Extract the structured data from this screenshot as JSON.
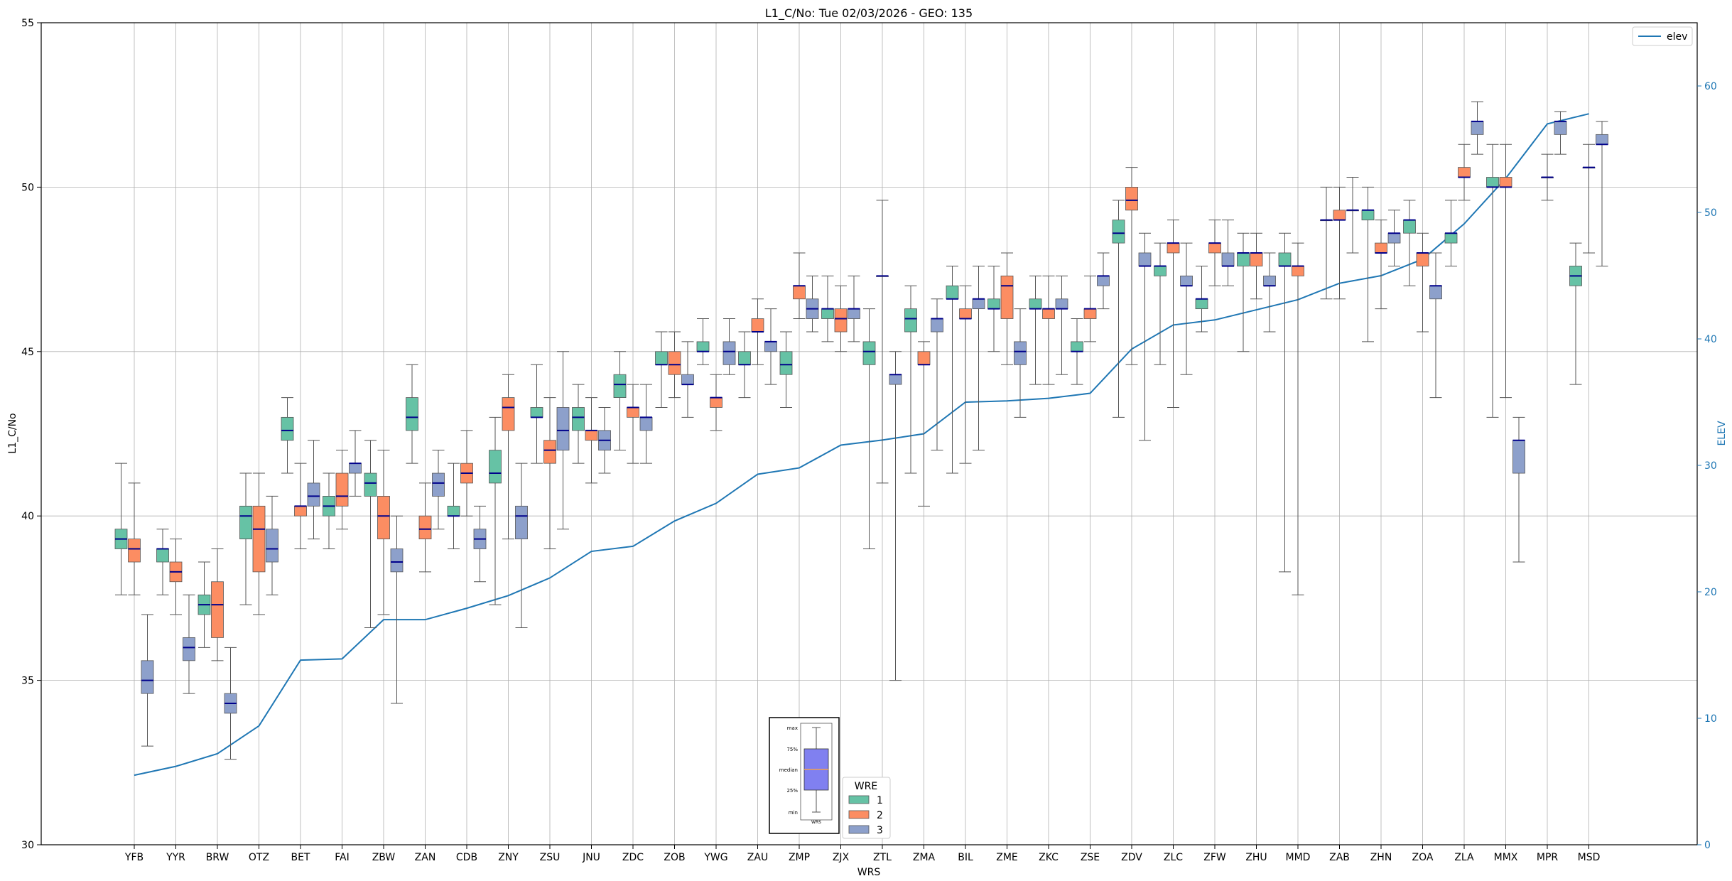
{
  "chart_data": {
    "type": "box",
    "title": "L1_C/No: Tue 02/03/2026 - GEO: 135",
    "xlabel": "WRS",
    "ylabel": "L1_C/No",
    "y2label": "ELEV",
    "ylim": [
      30,
      55
    ],
    "y2lim": [
      0,
      65
    ],
    "yticks": [
      30,
      35,
      40,
      45,
      50,
      55
    ],
    "y2ticks": [
      0,
      10,
      20,
      30,
      40,
      50,
      60
    ],
    "grid": true,
    "legend_line": {
      "label": "elev",
      "placement": "top-right",
      "color": "#1f77b4"
    },
    "legend_box": {
      "title": "WRE",
      "placement": "bottom-center",
      "entries": [
        {
          "label": "1",
          "color": "#66c2a5"
        },
        {
          "label": "2",
          "color": "#fc8d62"
        },
        {
          "label": "3",
          "color": "#8da0cb"
        }
      ]
    },
    "key_inset": {
      "labels": [
        "max",
        "75%",
        "median",
        "25%",
        "min"
      ],
      "caption": "WRS",
      "box_color": "#8080f0",
      "median_color": "#f0a050"
    },
    "colors": {
      "WRE1": "#66c2a5",
      "WRE2": "#fc8d62",
      "WRE3": "#8da0cb",
      "median": "#00008b",
      "elev": "#1f77b4"
    },
    "categories": [
      "YFB",
      "YYR",
      "BRW",
      "OTZ",
      "BET",
      "FAI",
      "ZBW",
      "ZAN",
      "CDB",
      "ZNY",
      "ZSU",
      "JNU",
      "ZDC",
      "ZOB",
      "YWG",
      "ZAU",
      "ZMP",
      "ZJX",
      "ZTL",
      "ZMA",
      "BIL",
      "ZME",
      "ZKC",
      "ZSE",
      "ZDV",
      "ZLC",
      "ZFW",
      "ZHU",
      "MMD",
      "ZAB",
      "ZHN",
      "ZOA",
      "ZLA",
      "MMX",
      "MPR",
      "MSD"
    ],
    "elev": [
      5.5,
      6.2,
      7.2,
      9.4,
      14.6,
      14.7,
      17.8,
      17.8,
      18.7,
      19.7,
      21.1,
      23.2,
      23.6,
      25.6,
      27.0,
      29.3,
      29.8,
      31.6,
      32.0,
      32.5,
      35.0,
      35.1,
      35.3,
      35.7,
      39.2,
      41.1,
      41.5,
      42.3,
      43.1,
      44.4,
      45.0,
      46.3,
      49.1,
      52.7,
      57.0,
      57.8
    ],
    "boxes": [
      {
        "station": "YFB",
        "wre": 1,
        "min": 37.6,
        "q1": 39.0,
        "median": 39.3,
        "q3": 39.6,
        "max": 41.6
      },
      {
        "station": "YFB",
        "wre": 2,
        "min": 37.6,
        "q1": 38.6,
        "median": 39.0,
        "q3": 39.3,
        "max": 41.0
      },
      {
        "station": "YFB",
        "wre": 3,
        "min": 33.0,
        "q1": 34.6,
        "median": 35.0,
        "q3": 35.6,
        "max": 37.0
      },
      {
        "station": "YYR",
        "wre": 1,
        "min": 37.6,
        "q1": 38.6,
        "median": 39.0,
        "q3": 39.0,
        "max": 39.6
      },
      {
        "station": "YYR",
        "wre": 2,
        "min": 37.0,
        "q1": 38.0,
        "median": 38.3,
        "q3": 38.6,
        "max": 39.3
      },
      {
        "station": "YYR",
        "wre": 3,
        "min": 34.6,
        "q1": 35.6,
        "median": 36.0,
        "q3": 36.3,
        "max": 37.6
      },
      {
        "station": "BRW",
        "wre": 1,
        "min": 36.0,
        "q1": 37.0,
        "median": 37.3,
        "q3": 37.6,
        "max": 38.6
      },
      {
        "station": "BRW",
        "wre": 2,
        "min": 35.6,
        "q1": 36.3,
        "median": 37.3,
        "q3": 38.0,
        "max": 39.0
      },
      {
        "station": "BRW",
        "wre": 3,
        "min": 32.6,
        "q1": 34.0,
        "median": 34.3,
        "q3": 34.6,
        "max": 36.0
      },
      {
        "station": "OTZ",
        "wre": 1,
        "min": 37.3,
        "q1": 39.3,
        "median": 40.0,
        "q3": 40.3,
        "max": 41.3
      },
      {
        "station": "OTZ",
        "wre": 2,
        "min": 37.0,
        "q1": 38.3,
        "median": 39.6,
        "q3": 40.3,
        "max": 41.3
      },
      {
        "station": "OTZ",
        "wre": 3,
        "min": 37.6,
        "q1": 38.6,
        "median": 39.0,
        "q3": 39.6,
        "max": 40.6
      },
      {
        "station": "BET",
        "wre": 1,
        "min": 41.3,
        "q1": 42.3,
        "median": 42.6,
        "q3": 43.0,
        "max": 43.6
      },
      {
        "station": "BET",
        "wre": 2,
        "min": 39.0,
        "q1": 40.0,
        "median": 40.3,
        "q3": 40.3,
        "max": 41.6
      },
      {
        "station": "BET",
        "wre": 3,
        "min": 39.3,
        "q1": 40.3,
        "median": 40.6,
        "q3": 41.0,
        "max": 42.3
      },
      {
        "station": "FAI",
        "wre": 1,
        "min": 39.0,
        "q1": 40.0,
        "median": 40.3,
        "q3": 40.6,
        "max": 41.3
      },
      {
        "station": "FAI",
        "wre": 2,
        "min": 39.6,
        "q1": 40.3,
        "median": 40.6,
        "q3": 41.3,
        "max": 42.0
      },
      {
        "station": "FAI",
        "wre": 3,
        "min": 40.6,
        "q1": 41.3,
        "median": 41.6,
        "q3": 41.6,
        "max": 42.6
      },
      {
        "station": "ZBW",
        "wre": 1,
        "min": 36.6,
        "q1": 40.6,
        "median": 41.0,
        "q3": 41.3,
        "max": 42.3
      },
      {
        "station": "ZBW",
        "wre": 2,
        "min": 37.0,
        "q1": 39.3,
        "median": 40.0,
        "q3": 40.6,
        "max": 42.0
      },
      {
        "station": "ZBW",
        "wre": 3,
        "min": 34.3,
        "q1": 38.3,
        "median": 38.6,
        "q3": 39.0,
        "max": 40.0
      },
      {
        "station": "ZAN",
        "wre": 1,
        "min": 41.6,
        "q1": 42.6,
        "median": 43.0,
        "q3": 43.6,
        "max": 44.6
      },
      {
        "station": "ZAN",
        "wre": 2,
        "min": 38.3,
        "q1": 39.3,
        "median": 39.6,
        "q3": 40.0,
        "max": 41.0
      },
      {
        "station": "ZAN",
        "wre": 3,
        "min": 39.6,
        "q1": 40.6,
        "median": 41.0,
        "q3": 41.3,
        "max": 42.0
      },
      {
        "station": "CDB",
        "wre": 1,
        "min": 39.0,
        "q1": 40.0,
        "median": 40.0,
        "q3": 40.3,
        "max": 41.6
      },
      {
        "station": "CDB",
        "wre": 2,
        "min": 40.0,
        "q1": 41.0,
        "median": 41.3,
        "q3": 41.6,
        "max": 42.6
      },
      {
        "station": "CDB",
        "wre": 3,
        "min": 38.0,
        "q1": 39.0,
        "median": 39.3,
        "q3": 39.6,
        "max": 40.3
      },
      {
        "station": "ZNY",
        "wre": 1,
        "min": 37.3,
        "q1": 41.0,
        "median": 41.3,
        "q3": 42.0,
        "max": 43.0
      },
      {
        "station": "ZNY",
        "wre": 2,
        "min": 39.3,
        "q1": 42.6,
        "median": 43.3,
        "q3": 43.6,
        "max": 44.3
      },
      {
        "station": "ZNY",
        "wre": 3,
        "min": 36.6,
        "q1": 39.3,
        "median": 40.0,
        "q3": 40.3,
        "max": 41.6
      },
      {
        "station": "ZSU",
        "wre": 1,
        "min": 41.6,
        "q1": 43.0,
        "median": 43.0,
        "q3": 43.3,
        "max": 44.6
      },
      {
        "station": "ZSU",
        "wre": 2,
        "min": 39.0,
        "q1": 41.6,
        "median": 42.0,
        "q3": 42.3,
        "max": 43.6
      },
      {
        "station": "ZSU",
        "wre": 3,
        "min": 39.6,
        "q1": 42.0,
        "median": 42.6,
        "q3": 43.3,
        "max": 45.0
      },
      {
        "station": "JNU",
        "wre": 1,
        "min": 41.6,
        "q1": 42.6,
        "median": 43.0,
        "q3": 43.3,
        "max": 44.0
      },
      {
        "station": "JNU",
        "wre": 2,
        "min": 41.0,
        "q1": 42.3,
        "median": 42.6,
        "q3": 42.6,
        "max": 43.6
      },
      {
        "station": "JNU",
        "wre": 3,
        "min": 41.3,
        "q1": 42.0,
        "median": 42.3,
        "q3": 42.6,
        "max": 43.3
      },
      {
        "station": "ZDC",
        "wre": 1,
        "min": 42.0,
        "q1": 43.6,
        "median": 44.0,
        "q3": 44.3,
        "max": 45.0
      },
      {
        "station": "ZDC",
        "wre": 2,
        "min": 41.6,
        "q1": 43.0,
        "median": 43.3,
        "q3": 43.3,
        "max": 44.0
      },
      {
        "station": "ZDC",
        "wre": 3,
        "min": 41.6,
        "q1": 42.6,
        "median": 43.0,
        "q3": 43.0,
        "max": 44.0
      },
      {
        "station": "ZOB",
        "wre": 1,
        "min": 43.3,
        "q1": 44.6,
        "median": 44.6,
        "q3": 45.0,
        "max": 45.6
      },
      {
        "station": "ZOB",
        "wre": 2,
        "min": 43.6,
        "q1": 44.3,
        "median": 44.6,
        "q3": 45.0,
        "max": 45.6
      },
      {
        "station": "ZOB",
        "wre": 3,
        "min": 43.0,
        "q1": 44.0,
        "median": 44.0,
        "q3": 44.3,
        "max": 45.3
      },
      {
        "station": "YWG",
        "wre": 1,
        "min": 44.6,
        "q1": 45.0,
        "median": 45.0,
        "q3": 45.3,
        "max": 46.0
      },
      {
        "station": "YWG",
        "wre": 2,
        "min": 42.6,
        "q1": 43.3,
        "median": 43.6,
        "q3": 43.6,
        "max": 44.3
      },
      {
        "station": "YWG",
        "wre": 3,
        "min": 44.3,
        "q1": 44.6,
        "median": 45.0,
        "q3": 45.3,
        "max": 46.0
      },
      {
        "station": "ZAU",
        "wre": 1,
        "min": 43.6,
        "q1": 44.6,
        "median": 44.6,
        "q3": 45.0,
        "max": 45.6
      },
      {
        "station": "ZAU",
        "wre": 2,
        "min": 44.6,
        "q1": 45.6,
        "median": 45.6,
        "q3": 46.0,
        "max": 46.6
      },
      {
        "station": "ZAU",
        "wre": 3,
        "min": 44.0,
        "q1": 45.0,
        "median": 45.3,
        "q3": 45.3,
        "max": 46.3
      },
      {
        "station": "ZMP",
        "wre": 1,
        "min": 43.3,
        "q1": 44.3,
        "median": 44.6,
        "q3": 45.0,
        "max": 45.6
      },
      {
        "station": "ZMP",
        "wre": 2,
        "min": 46.0,
        "q1": 46.6,
        "median": 47.0,
        "q3": 47.0,
        "max": 48.0
      },
      {
        "station": "ZMP",
        "wre": 3,
        "min": 45.6,
        "q1": 46.0,
        "median": 46.3,
        "q3": 46.6,
        "max": 47.3
      },
      {
        "station": "ZJX",
        "wre": 1,
        "min": 45.3,
        "q1": 46.0,
        "median": 46.3,
        "q3": 46.3,
        "max": 47.3
      },
      {
        "station": "ZJX",
        "wre": 2,
        "min": 45.0,
        "q1": 45.6,
        "median": 46.0,
        "q3": 46.3,
        "max": 47.0
      },
      {
        "station": "ZJX",
        "wre": 3,
        "min": 45.3,
        "q1": 46.0,
        "median": 46.3,
        "q3": 46.3,
        "max": 47.3
      },
      {
        "station": "ZTL",
        "wre": 1,
        "min": 39.0,
        "q1": 44.6,
        "median": 45.0,
        "q3": 45.3,
        "max": 46.3
      },
      {
        "station": "ZTL",
        "wre": 2,
        "min": 41.0,
        "q1": 47.3,
        "median": 47.3,
        "q3": 47.3,
        "max": 49.6
      },
      {
        "station": "ZTL",
        "wre": 3,
        "min": 35.0,
        "q1": 44.0,
        "median": 44.3,
        "q3": 44.3,
        "max": 45.0
      },
      {
        "station": "ZMA",
        "wre": 1,
        "min": 41.3,
        "q1": 45.6,
        "median": 46.0,
        "q3": 46.3,
        "max": 47.0
      },
      {
        "station": "ZMA",
        "wre": 2,
        "min": 40.3,
        "q1": 44.6,
        "median": 44.6,
        "q3": 45.0,
        "max": 45.3
      },
      {
        "station": "ZMA",
        "wre": 3,
        "min": 42.0,
        "q1": 45.6,
        "median": 46.0,
        "q3": 46.0,
        "max": 46.6
      },
      {
        "station": "BIL",
        "wre": 1,
        "min": 41.3,
        "q1": 46.6,
        "median": 46.6,
        "q3": 47.0,
        "max": 47.6
      },
      {
        "station": "BIL",
        "wre": 2,
        "min": 41.6,
        "q1": 46.0,
        "median": 46.0,
        "q3": 46.3,
        "max": 47.0
      },
      {
        "station": "BIL",
        "wre": 3,
        "min": 42.0,
        "q1": 46.3,
        "median": 46.6,
        "q3": 46.6,
        "max": 47.6
      },
      {
        "station": "ZME",
        "wre": 1,
        "min": 45.0,
        "q1": 46.3,
        "median": 46.3,
        "q3": 46.6,
        "max": 47.6
      },
      {
        "station": "ZME",
        "wre": 2,
        "min": 44.6,
        "q1": 46.0,
        "median": 47.0,
        "q3": 47.3,
        "max": 48.0
      },
      {
        "station": "ZME",
        "wre": 3,
        "min": 43.0,
        "q1": 44.6,
        "median": 45.0,
        "q3": 45.3,
        "max": 46.3
      },
      {
        "station": "ZKC",
        "wre": 1,
        "min": 44.0,
        "q1": 46.3,
        "median": 46.3,
        "q3": 46.6,
        "max": 47.3
      },
      {
        "station": "ZKC",
        "wre": 2,
        "min": 44.0,
        "q1": 46.0,
        "median": 46.3,
        "q3": 46.3,
        "max": 47.3
      },
      {
        "station": "ZKC",
        "wre": 3,
        "min": 44.3,
        "q1": 46.3,
        "median": 46.3,
        "q3": 46.6,
        "max": 47.3
      },
      {
        "station": "ZSE",
        "wre": 1,
        "min": 44.0,
        "q1": 45.0,
        "median": 45.0,
        "q3": 45.3,
        "max": 46.0
      },
      {
        "station": "ZSE",
        "wre": 2,
        "min": 45.3,
        "q1": 46.0,
        "median": 46.3,
        "q3": 46.3,
        "max": 47.3
      },
      {
        "station": "ZSE",
        "wre": 3,
        "min": 46.3,
        "q1": 47.0,
        "median": 47.3,
        "q3": 47.3,
        "max": 48.0
      },
      {
        "station": "ZDV",
        "wre": 1,
        "min": 43.0,
        "q1": 48.3,
        "median": 48.6,
        "q3": 49.0,
        "max": 49.6
      },
      {
        "station": "ZDV",
        "wre": 2,
        "min": 44.6,
        "q1": 49.3,
        "median": 49.6,
        "q3": 50.0,
        "max": 50.6
      },
      {
        "station": "ZDV",
        "wre": 3,
        "min": 42.3,
        "q1": 47.6,
        "median": 47.6,
        "q3": 48.0,
        "max": 48.6
      },
      {
        "station": "ZLC",
        "wre": 1,
        "min": 44.6,
        "q1": 47.3,
        "median": 47.6,
        "q3": 47.6,
        "max": 48.3
      },
      {
        "station": "ZLC",
        "wre": 2,
        "min": 43.3,
        "q1": 48.0,
        "median": 48.3,
        "q3": 48.3,
        "max": 49.0
      },
      {
        "station": "ZLC",
        "wre": 3,
        "min": 44.3,
        "q1": 47.0,
        "median": 47.0,
        "q3": 47.3,
        "max": 48.3
      },
      {
        "station": "ZFW",
        "wre": 1,
        "min": 45.6,
        "q1": 46.3,
        "median": 46.6,
        "q3": 46.6,
        "max": 47.6
      },
      {
        "station": "ZFW",
        "wre": 2,
        "min": 47.0,
        "q1": 48.0,
        "median": 48.3,
        "q3": 48.3,
        "max": 49.0
      },
      {
        "station": "ZFW",
        "wre": 3,
        "min": 47.0,
        "q1": 47.6,
        "median": 47.6,
        "q3": 48.0,
        "max": 49.0
      },
      {
        "station": "ZHU",
        "wre": 1,
        "min": 45.0,
        "q1": 47.6,
        "median": 48.0,
        "q3": 48.0,
        "max": 48.6
      },
      {
        "station": "ZHU",
        "wre": 2,
        "min": 46.6,
        "q1": 47.6,
        "median": 48.0,
        "q3": 48.0,
        "max": 48.6
      },
      {
        "station": "ZHU",
        "wre": 3,
        "min": 45.6,
        "q1": 47.0,
        "median": 47.0,
        "q3": 47.3,
        "max": 48.0
      },
      {
        "station": "MMD",
        "wre": 1,
        "min": 38.3,
        "q1": 47.6,
        "median": 47.6,
        "q3": 48.0,
        "max": 48.6
      },
      {
        "station": "MMD",
        "wre": 2,
        "min": 37.6,
        "q1": 47.3,
        "median": 47.6,
        "q3": 47.6,
        "max": 48.3
      },
      {
        "station": "ZAB",
        "wre": 1,
        "min": 46.6,
        "q1": 49.0,
        "median": 49.0,
        "q3": 49.0,
        "max": 50.0
      },
      {
        "station": "ZAB",
        "wre": 2,
        "min": 46.6,
        "q1": 49.0,
        "median": 49.0,
        "q3": 49.3,
        "max": 50.0
      },
      {
        "station": "ZAB",
        "wre": 3,
        "min": 48.0,
        "q1": 49.3,
        "median": 49.3,
        "q3": 49.3,
        "max": 50.3
      },
      {
        "station": "ZHN",
        "wre": 1,
        "min": 45.3,
        "q1": 49.0,
        "median": 49.3,
        "q3": 49.3,
        "max": 50.0
      },
      {
        "station": "ZHN",
        "wre": 2,
        "min": 46.3,
        "q1": 48.0,
        "median": 48.0,
        "q3": 48.3,
        "max": 49.0
      },
      {
        "station": "ZHN",
        "wre": 3,
        "min": 47.6,
        "q1": 48.3,
        "median": 48.6,
        "q3": 48.6,
        "max": 49.3
      },
      {
        "station": "ZOA",
        "wre": 1,
        "min": 47.0,
        "q1": 48.6,
        "median": 49.0,
        "q3": 49.0,
        "max": 49.6
      },
      {
        "station": "ZOA",
        "wre": 2,
        "min": 45.6,
        "q1": 47.6,
        "median": 48.0,
        "q3": 48.0,
        "max": 48.6
      },
      {
        "station": "ZOA",
        "wre": 3,
        "min": 43.6,
        "q1": 46.6,
        "median": 47.0,
        "q3": 47.0,
        "max": 48.0
      },
      {
        "station": "ZLA",
        "wre": 1,
        "min": 47.6,
        "q1": 48.3,
        "median": 48.6,
        "q3": 48.6,
        "max": 49.6
      },
      {
        "station": "ZLA",
        "wre": 2,
        "min": 49.6,
        "q1": 50.3,
        "median": 50.3,
        "q3": 50.6,
        "max": 51.3
      },
      {
        "station": "ZLA",
        "wre": 3,
        "min": 51.0,
        "q1": 51.6,
        "median": 52.0,
        "q3": 52.0,
        "max": 52.6
      },
      {
        "station": "MMX",
        "wre": 1,
        "min": 43.0,
        "q1": 50.0,
        "median": 50.0,
        "q3": 50.3,
        "max": 51.3
      },
      {
        "station": "MMX",
        "wre": 2,
        "min": 43.6,
        "q1": 50.0,
        "median": 50.0,
        "q3": 50.3,
        "max": 51.3
      },
      {
        "station": "MMX",
        "wre": 3,
        "min": 38.6,
        "q1": 41.3,
        "median": 42.3,
        "q3": 42.3,
        "max": 43.0
      },
      {
        "station": "MPR",
        "wre": 2,
        "min": 49.6,
        "q1": 50.3,
        "median": 50.3,
        "q3": 50.3,
        "max": 51.0
      },
      {
        "station": "MPR",
        "wre": 3,
        "min": 51.0,
        "q1": 51.6,
        "median": 52.0,
        "q3": 52.0,
        "max": 52.3
      },
      {
        "station": "MSD",
        "wre": 1,
        "min": 44.0,
        "q1": 47.0,
        "median": 47.3,
        "q3": 47.6,
        "max": 48.3
      },
      {
        "station": "MSD",
        "wre": 2,
        "min": 48.0,
        "q1": 50.6,
        "median": 50.6,
        "q3": 50.6,
        "max": 51.3
      },
      {
        "station": "MSD",
        "wre": 3,
        "min": 47.6,
        "q1": 51.3,
        "median": 51.3,
        "q3": 51.6,
        "max": 52.0
      }
    ]
  }
}
